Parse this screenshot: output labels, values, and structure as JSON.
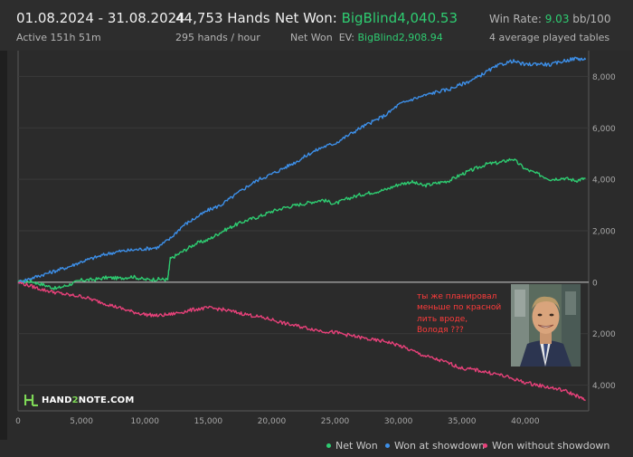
{
  "header": {
    "date_range": "01.08.2024 - 31.08.2024",
    "active": "Active 151h 51m",
    "hands": "44,753 Hands",
    "hands_per_hour": "295 hands / hour",
    "net_won_label": "Net Won: ",
    "net_won_value": "BigBlind4,040.53",
    "ev_label": "Net Won  EV: ",
    "ev_value": "BigBlind2,908.94",
    "win_rate_label": "Win Rate: ",
    "win_rate_value": "9.03",
    "win_rate_unit": " bb/100",
    "tables": "4 average played tables"
  },
  "annotation": [
    "ты же планировал",
    "меньше по красной",
    "лить вроде,",
    "Володя ???"
  ],
  "logo": {
    "pre": "HAND",
    "two": "2",
    "post": "NOTE.COM"
  },
  "colors": {
    "net_won": "#2ecc71",
    "showdown": "#3d8fe8",
    "no_showdown": "#e8417a",
    "grid": "#3b3b3b",
    "zero_line": "#d0d0d0"
  },
  "chart_data": {
    "type": "line",
    "title": "",
    "xlabel": "",
    "ylabel": "",
    "xlim": [
      0,
      45000
    ],
    "ylim": [
      -5000,
      9000
    ],
    "x_ticks": [
      0,
      5000,
      10000,
      15000,
      20000,
      25000,
      30000,
      35000,
      40000
    ],
    "x_tick_labels": [
      "0",
      "5,000",
      "10,000",
      "15,000",
      "20,000",
      "25,000",
      "30,000",
      "35,000",
      "40,000"
    ],
    "y_ticks": [
      8000,
      6000,
      4000,
      2000,
      0,
      -2000,
      -4000
    ],
    "y_tick_labels": [
      "8,000",
      "6,000",
      "4,000",
      "2,000",
      "0",
      "2,000",
      "4,000"
    ],
    "grid": true,
    "legend_position": "bottom-right",
    "series": [
      {
        "name": "Net Won",
        "color": "#2ecc71",
        "x": [
          0,
          1000,
          2000,
          3000,
          4000,
          5000,
          6000,
          7000,
          8000,
          9000,
          10000,
          11000,
          11800,
          12000,
          13000,
          14000,
          15000,
          16000,
          17000,
          18000,
          19000,
          20000,
          21000,
          22000,
          23000,
          24000,
          25000,
          26000,
          27000,
          28000,
          29000,
          30000,
          31000,
          32000,
          33000,
          34000,
          35000,
          36000,
          37000,
          38000,
          39000,
          40000,
          41000,
          42000,
          43000,
          44000,
          44753
        ],
        "y": [
          0,
          40,
          -100,
          -250,
          -100,
          80,
          100,
          180,
          150,
          220,
          100,
          120,
          100,
          900,
          1200,
          1500,
          1650,
          1950,
          2200,
          2400,
          2550,
          2750,
          2900,
          3000,
          3100,
          3200,
          3050,
          3250,
          3400,
          3500,
          3600,
          3800,
          3900,
          3750,
          3850,
          3950,
          4200,
          4400,
          4600,
          4650,
          4800,
          4400,
          4200,
          4000,
          4050,
          3950,
          4040
        ]
      },
      {
        "name": "Won at showdown",
        "color": "#3d8fe8",
        "x": [
          0,
          1000,
          2000,
          3000,
          4000,
          5000,
          6000,
          7000,
          8000,
          9000,
          10000,
          11000,
          12000,
          13000,
          14000,
          15000,
          16000,
          17000,
          18000,
          19000,
          20000,
          21000,
          22000,
          23000,
          24000,
          25000,
          26000,
          27000,
          28000,
          29000,
          30000,
          31000,
          32000,
          33000,
          34000,
          35000,
          36000,
          37000,
          38000,
          39000,
          40000,
          41000,
          42000,
          43000,
          44000,
          44753
        ],
        "y": [
          0,
          150,
          300,
          450,
          600,
          800,
          950,
          1100,
          1200,
          1250,
          1300,
          1350,
          1700,
          2200,
          2500,
          2800,
          3000,
          3350,
          3700,
          4000,
          4200,
          4450,
          4700,
          5000,
          5250,
          5400,
          5700,
          6000,
          6250,
          6500,
          6900,
          7100,
          7250,
          7400,
          7500,
          7700,
          7900,
          8200,
          8450,
          8600,
          8450,
          8500,
          8450,
          8600,
          8700,
          8650
        ]
      },
      {
        "name": "Won without showdown",
        "color": "#e8417a",
        "x": [
          0,
          1000,
          2000,
          3000,
          4000,
          5000,
          6000,
          7000,
          8000,
          9000,
          10000,
          11000,
          12000,
          13000,
          14000,
          15000,
          16000,
          17000,
          18000,
          19000,
          20000,
          21000,
          22000,
          23000,
          24000,
          25000,
          26000,
          27000,
          28000,
          29000,
          30000,
          31000,
          32000,
          33000,
          34000,
          35000,
          36000,
          37000,
          38000,
          39000,
          40000,
          41000,
          42000,
          43000,
          44000,
          44753
        ],
        "y": [
          0,
          -150,
          -300,
          -400,
          -500,
          -550,
          -700,
          -850,
          -1000,
          -1150,
          -1250,
          -1300,
          -1250,
          -1150,
          -1050,
          -1000,
          -1050,
          -1150,
          -1250,
          -1350,
          -1450,
          -1600,
          -1700,
          -1800,
          -1900,
          -1950,
          -2050,
          -2150,
          -2250,
          -2300,
          -2450,
          -2650,
          -2850,
          -3000,
          -3150,
          -3350,
          -3400,
          -3500,
          -3600,
          -3750,
          -3900,
          -4000,
          -4100,
          -4200,
          -4400,
          -4600
        ]
      }
    ]
  }
}
